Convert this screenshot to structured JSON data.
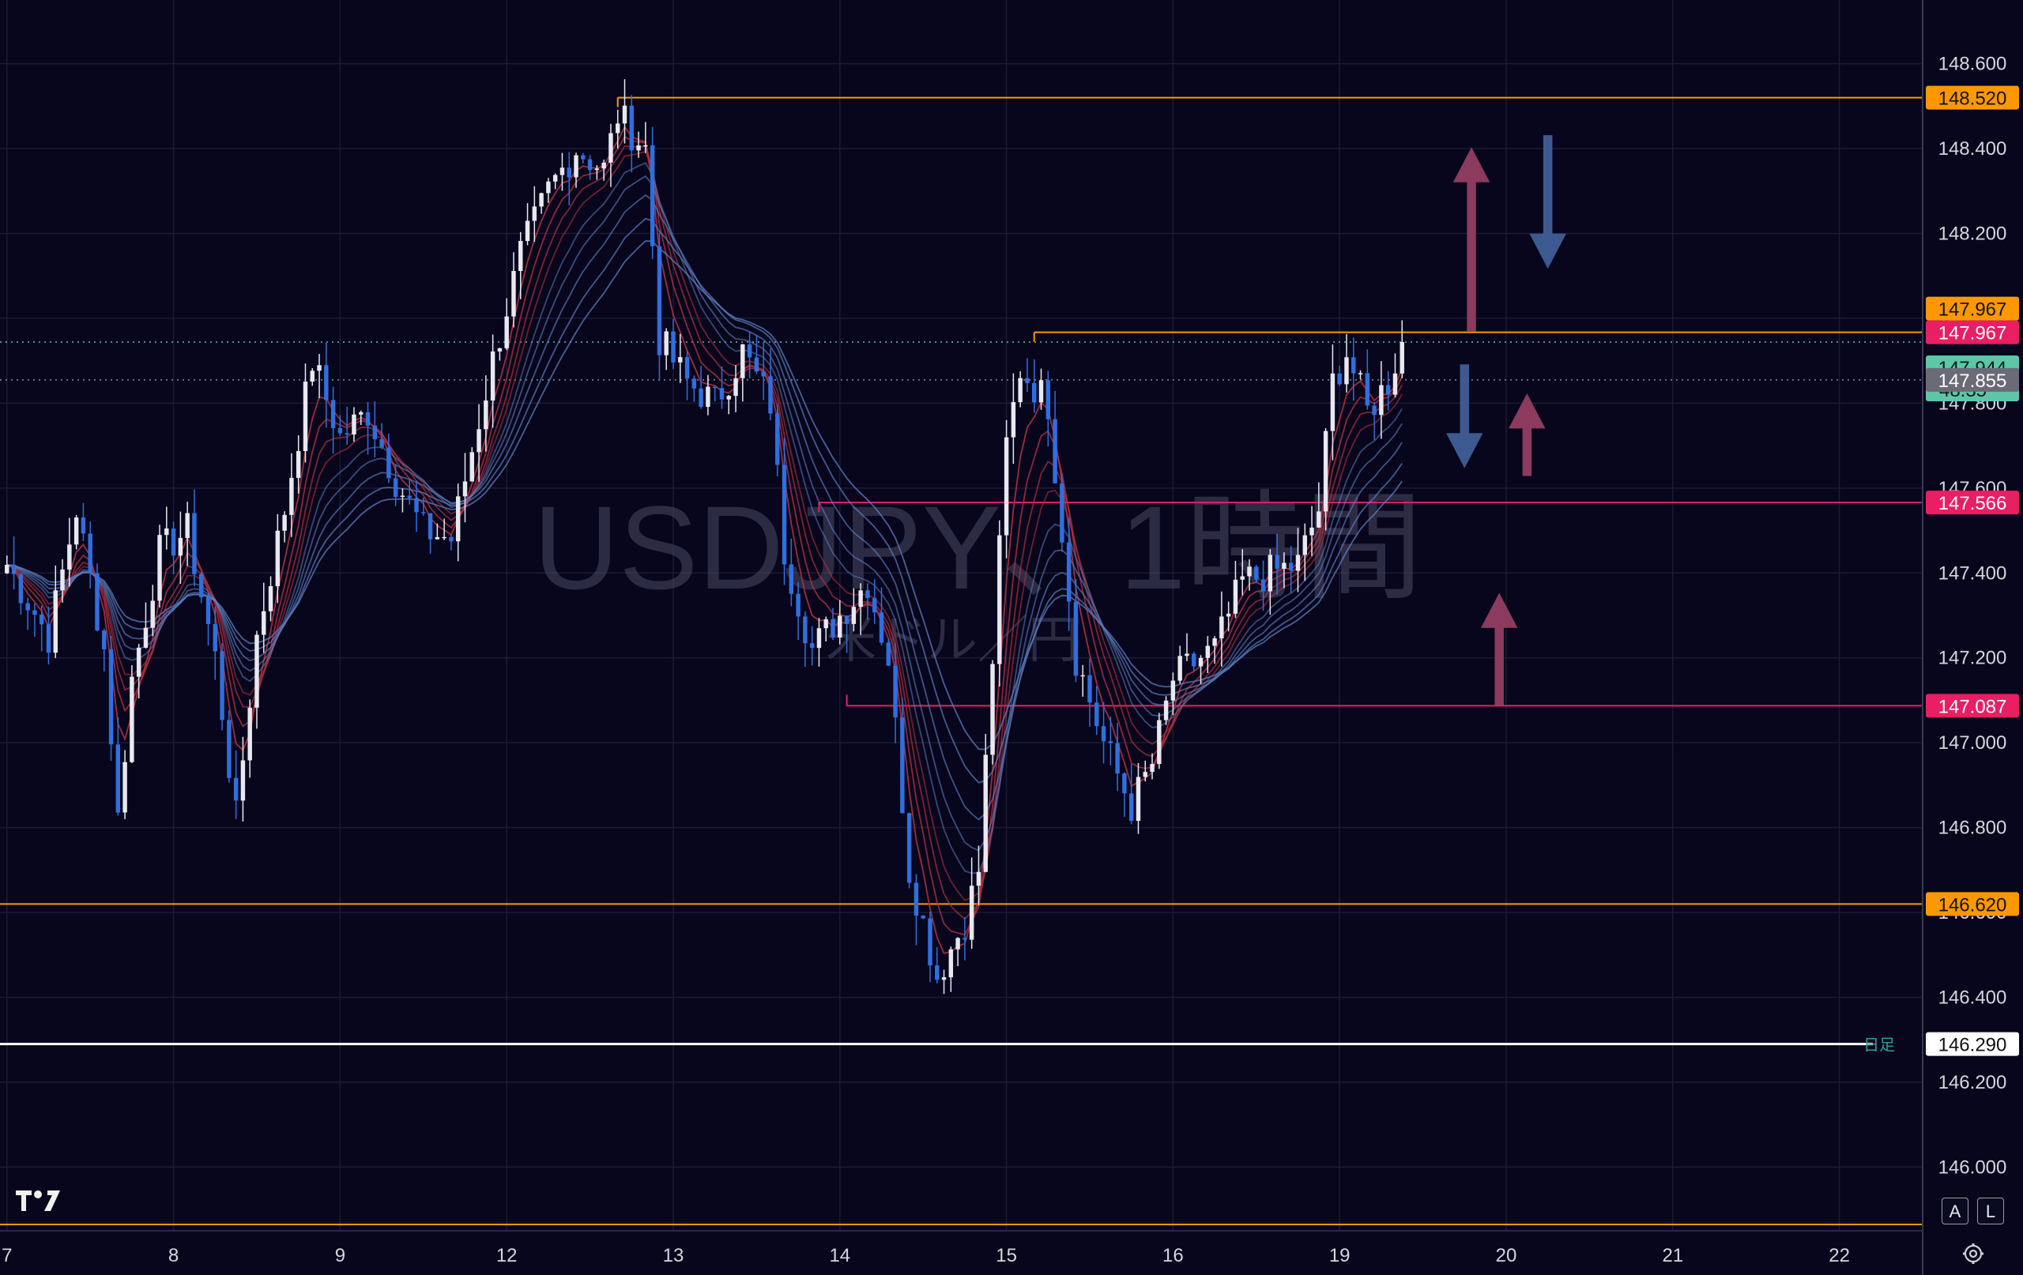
{
  "watermark": {
    "symbol": "USDJPY、1時間",
    "subtitle": "米ドル／円"
  },
  "chart_data": {
    "type": "candlestick",
    "ylim": [
      145.85,
      148.75
    ],
    "y_ticks": [
      {
        "value": 146.0,
        "label": "146.000"
      },
      {
        "value": 146.2,
        "label": "146.200"
      },
      {
        "value": 146.4,
        "label": "146.400"
      },
      {
        "value": 146.6,
        "label": "146.600"
      },
      {
        "value": 146.8,
        "label": "146.800"
      },
      {
        "value": 147.0,
        "label": "147.000"
      },
      {
        "value": 147.2,
        "label": "147.200"
      },
      {
        "value": 147.4,
        "label": "147.400"
      },
      {
        "value": 147.6,
        "label": "147.600"
      },
      {
        "value": 147.8,
        "label": "147.800"
      },
      {
        "value": 148.0,
        "label": "148.000"
      },
      {
        "value": 148.2,
        "label": "148.200"
      },
      {
        "value": 148.4,
        "label": "148.400"
      },
      {
        "value": 148.6,
        "label": "148.600"
      }
    ],
    "x_ticks": [
      "7",
      "8",
      "9",
      "12",
      "13",
      "14",
      "15",
      "16",
      "19",
      "20",
      "21",
      "22"
    ],
    "x_tick_index": [
      0,
      24,
      48,
      72,
      96,
      120,
      144,
      168,
      192,
      216,
      240,
      264
    ],
    "price_path": [
      [
        0,
        147.42
      ],
      [
        6,
        147.25
      ],
      [
        10,
        147.55
      ],
      [
        14,
        147.22
      ],
      [
        16,
        146.82
      ],
      [
        18,
        147.15
      ],
      [
        22,
        147.45
      ],
      [
        26,
        147.5
      ],
      [
        30,
        147.2
      ],
      [
        33,
        146.82
      ],
      [
        36,
        147.25
      ],
      [
        40,
        147.55
      ],
      [
        44,
        147.9
      ],
      [
        48,
        147.72
      ],
      [
        52,
        147.78
      ],
      [
        56,
        147.62
      ],
      [
        60,
        147.5
      ],
      [
        64,
        147.48
      ],
      [
        66,
        147.62
      ],
      [
        70,
        147.9
      ],
      [
        74,
        148.15
      ],
      [
        78,
        148.3
      ],
      [
        82,
        148.4
      ],
      [
        86,
        148.35
      ],
      [
        88,
        148.48
      ],
      [
        92,
        148.4
      ],
      [
        94,
        147.95
      ],
      [
        98,
        147.85
      ],
      [
        102,
        147.8
      ],
      [
        106,
        147.92
      ],
      [
        110,
        147.8
      ],
      [
        112,
        147.45
      ],
      [
        116,
        147.22
      ],
      [
        120,
        147.3
      ],
      [
        124,
        147.38
      ],
      [
        127,
        147.2
      ],
      [
        130,
        146.7
      ],
      [
        134,
        146.45
      ],
      [
        138,
        146.58
      ],
      [
        140,
        146.7
      ],
      [
        142,
        147.2
      ],
      [
        144,
        147.7
      ],
      [
        146,
        147.88
      ],
      [
        150,
        147.8
      ],
      [
        152,
        147.5
      ],
      [
        154,
        147.2
      ],
      [
        158,
        147.0
      ],
      [
        162,
        146.85
      ],
      [
        165,
        146.95
      ],
      [
        168,
        147.15
      ],
      [
        172,
        147.2
      ],
      [
        174,
        147.22
      ],
      [
        178,
        147.38
      ],
      [
        182,
        147.4
      ],
      [
        186,
        147.42
      ],
      [
        189,
        147.55
      ],
      [
        191,
        147.85
      ],
      [
        193,
        147.92
      ],
      [
        196,
        147.78
      ],
      [
        199,
        147.85
      ],
      [
        201,
        147.944
      ]
    ],
    "last_bar_index": 201,
    "x_range": [
      -1,
      276
    ],
    "horizontal_lines": [
      {
        "value": 148.52,
        "label": "148.520",
        "color": "#ff9800",
        "start": 88,
        "kind": "resistance"
      },
      {
        "value": 147.967,
        "label": "147.967",
        "color": "#ff9800",
        "start": 148,
        "kind": "resistance"
      },
      {
        "value": 147.566,
        "label": "147.566",
        "color": "#e91e63",
        "start": 117,
        "kind": "zone"
      },
      {
        "value": 147.087,
        "label": "147.087",
        "color": "#e91e63",
        "start": 121,
        "kind": "zone"
      },
      {
        "value": 146.62,
        "label": "146.620",
        "color": "#ff9800",
        "start": -1,
        "kind": "support"
      },
      {
        "value": 146.29,
        "label": "146.290",
        "color": "#ffffff",
        "start": -1,
        "kind": "daily",
        "tag": "日足"
      },
      {
        "value": 146.0,
        "label": "",
        "color": "#ff9800",
        "start": -1,
        "kind": "bottom",
        "y_override": 145.865
      }
    ],
    "price_badges": [
      {
        "value": 148.52,
        "label": "148.520",
        "bg": "#ff9800",
        "fg": "#111111"
      },
      {
        "value": 147.967,
        "label": "147.967",
        "bg": "#ff9800",
        "fg": "#111111",
        "offset": -30
      },
      {
        "value": 147.967,
        "label": "147.967",
        "bg": "#e91e63",
        "fg": "#ffffff",
        "offset": 0
      },
      {
        "value": 147.944,
        "label": "147.944",
        "sub": "48:35",
        "bg": "#5cc7a8",
        "fg": "#0b1a16",
        "offset": 32
      },
      {
        "value": 147.855,
        "label": "147.855",
        "bg": "#6b6b78",
        "fg": "#ffffff",
        "offset": 0
      },
      {
        "value": 147.566,
        "label": "147.566",
        "bg": "#e91e63",
        "fg": "#ffffff"
      },
      {
        "value": 147.087,
        "label": "147.087",
        "bg": "#e91e63",
        "fg": "#ffffff"
      },
      {
        "value": 146.62,
        "label": "146.620",
        "bg": "#ff9800",
        "fg": "#111111"
      },
      {
        "value": 146.29,
        "label": "146.290",
        "bg": "#ffffff",
        "fg": "#111111"
      }
    ],
    "arrows": [
      {
        "direction": "up",
        "color": "#8c3a5e",
        "x_index": 211,
        "y_from": 147.97,
        "y_to": 148.4
      },
      {
        "direction": "down",
        "color": "#3d5a90",
        "x_index": 222,
        "y_from": 148.43,
        "y_to": 148.12
      },
      {
        "direction": "down",
        "color": "#3d5a90",
        "x_index": 210,
        "y_from": 147.89,
        "y_to": 147.65
      },
      {
        "direction": "up",
        "color": "#8c3a5e",
        "x_index": 219,
        "y_from": 147.63,
        "y_to": 147.82
      },
      {
        "direction": "up",
        "color": "#8c3a5e",
        "x_index": 215,
        "y_from": 147.09,
        "y_to": 147.35
      }
    ],
    "colors": {
      "bull": "#e8e8f0",
      "bear": "#2f6fe0",
      "grid": "#1b1b35",
      "ma_fast": "#b0303f",
      "ma_slow": "#5d7fc0"
    },
    "last_price_line": 147.944,
    "prev_price_line": 147.855
  },
  "axis": {
    "tag_daily": "日足"
  },
  "buttons": {
    "auto": "A",
    "log": "L"
  }
}
